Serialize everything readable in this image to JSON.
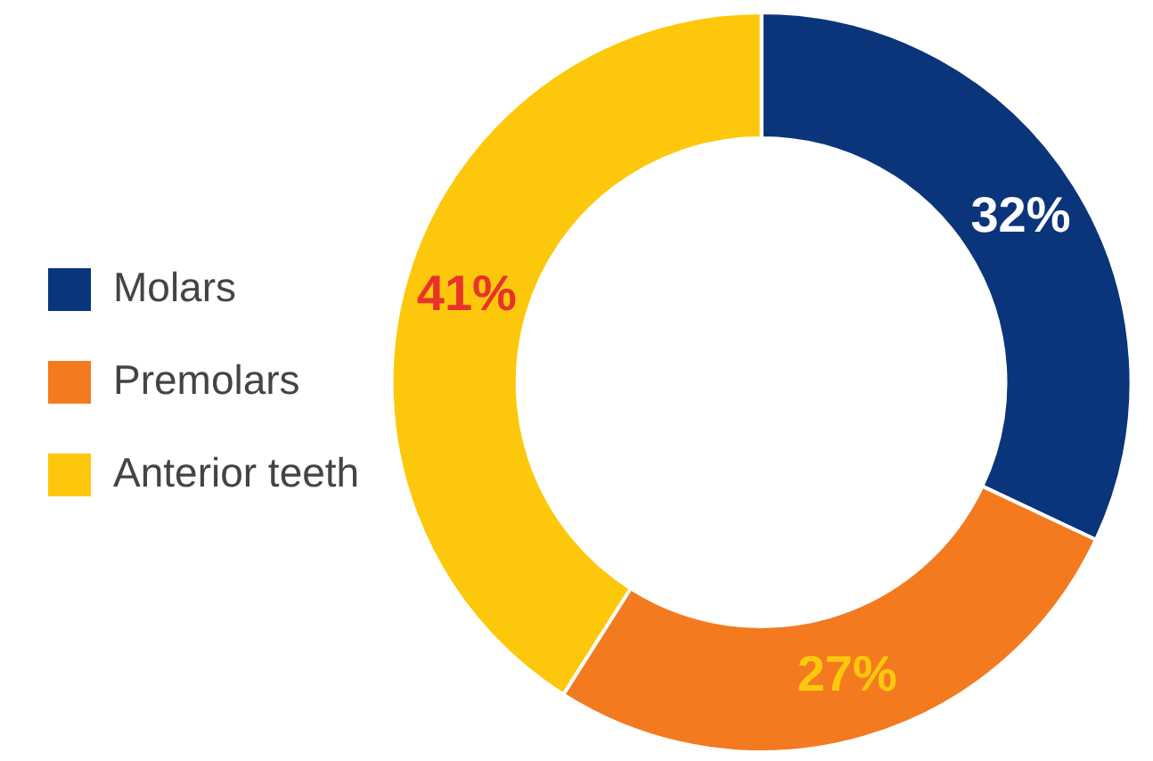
{
  "chart_data": {
    "type": "donut",
    "categories": [
      "Molars",
      "Premolars",
      "Anterior teeth"
    ],
    "values": [
      32,
      27,
      41
    ],
    "colors": [
      "#0a357a",
      "#f47a20",
      "#fdc80c"
    ],
    "value_labels": [
      "32%",
      "27%",
      "41%"
    ],
    "legend": "left"
  }
}
